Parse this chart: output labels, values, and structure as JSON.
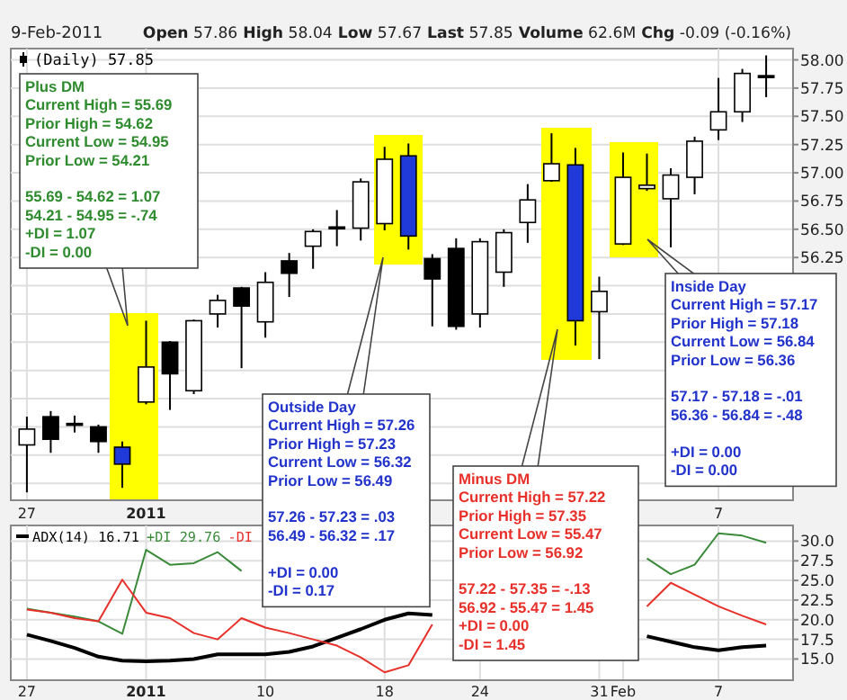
{
  "chart_data": [
    {
      "type": "candlestick",
      "title": "9-Feb-2011",
      "subtitle": "Open 57.86 High 58.04 Low 57.67 Last 57.85 Volume 62.6M Chg -0.09 (-0.16%)",
      "categories": [
        "27",
        null,
        null,
        null,
        null,
        "2011",
        null,
        null,
        null,
        null,
        null,
        null,
        null,
        null,
        null,
        null,
        null,
        null,
        null,
        null,
        null,
        null,
        null,
        null,
        null,
        null,
        null,
        null,
        null,
        "7",
        null,
        null
      ],
      "series": [
        {
          "name": "(Daily) 57.85",
          "ohlc": [
            [
              54.59,
              54.84,
              54.17,
              54.73
            ],
            [
              54.84,
              54.89,
              54.52,
              54.64
            ],
            [
              54.78,
              54.85,
              54.7,
              54.77
            ],
            [
              54.75,
              54.77,
              54.52,
              54.62
            ],
            [
              54.57,
              54.62,
              54.21,
              54.42
            ],
            [
              54.97,
              55.69,
              54.95,
              55.28
            ],
            [
              55.5,
              55.51,
              54.9,
              55.22
            ],
            [
              55.07,
              55.7,
              55.04,
              55.69
            ],
            [
              55.75,
              55.92,
              55.63,
              55.87
            ],
            [
              55.98,
              55.99,
              55.27,
              55.82
            ],
            [
              55.68,
              56.12,
              55.54,
              56.03
            ],
            [
              56.22,
              56.29,
              55.9,
              56.11
            ],
            [
              56.35,
              56.5,
              56.15,
              56.48
            ],
            [
              56.52,
              56.67,
              56.35,
              56.51
            ],
            [
              56.51,
              56.95,
              56.4,
              56.92
            ],
            [
              56.55,
              57.23,
              56.49,
              57.12
            ],
            [
              57.15,
              57.26,
              56.32,
              56.44
            ],
            [
              56.24,
              56.28,
              55.64,
              56.06
            ],
            [
              56.33,
              56.42,
              55.61,
              55.64
            ],
            [
              55.75,
              56.42,
              55.63,
              56.39
            ],
            [
              56.12,
              56.5,
              55.99,
              56.47
            ],
            [
              56.56,
              56.9,
              56.38,
              56.76
            ],
            [
              56.93,
              57.35,
              56.92,
              57.08
            ],
            [
              57.07,
              57.22,
              55.47,
              55.69
            ],
            [
              55.77,
              56.08,
              55.35,
              55.95
            ],
            [
              56.37,
              57.18,
              56.36,
              56.96
            ],
            [
              56.86,
              57.17,
              56.84,
              56.89
            ],
            [
              56.77,
              57.04,
              56.34,
              56.98
            ],
            [
              56.96,
              57.32,
              56.81,
              57.28
            ],
            [
              57.38,
              57.84,
              57.29,
              57.54
            ],
            [
              57.54,
              57.92,
              57.45,
              57.88
            ],
            [
              57.86,
              58.04,
              57.67,
              57.85
            ]
          ],
          "colors": [
            "#ffffff",
            "#000000",
            "#000000",
            "#000000",
            "#1f3ad8",
            "#ffffff",
            "#000000",
            "#ffffff",
            "#ffffff",
            "#000000",
            "#ffffff",
            "#000000",
            "#ffffff",
            "#000000",
            "#ffffff",
            "#ffffff",
            "#1f3ad8",
            "#000000",
            "#000000",
            "#ffffff",
            "#ffffff",
            "#ffffff",
            "#ffffff",
            "#1f3ad8",
            "#ffffff",
            "#ffffff",
            "#ffffff",
            "#ffffff",
            "#ffffff",
            "#ffffff",
            "#ffffff",
            "#000000"
          ]
        }
      ],
      "ylim": [
        54.1,
        58.1
      ],
      "yticks": [
        {
          "value": 54.25,
          "label": null
        },
        {
          "value": 54.5,
          "label": null
        },
        {
          "value": 54.75,
          "label": null
        },
        {
          "value": 55,
          "label": null
        },
        {
          "value": 55.25,
          "label": null
        },
        {
          "value": 55.5,
          "label": null
        },
        {
          "value": 55.75,
          "label": null
        },
        {
          "value": 56,
          "label": null
        },
        {
          "value": 56.25,
          "label": "56.25"
        },
        {
          "value": 56.5,
          "label": "56.50"
        },
        {
          "value": 56.75,
          "label": "56.75"
        },
        {
          "value": 57,
          "label": "57.00"
        },
        {
          "value": 57.25,
          "label": "57.25"
        },
        {
          "value": 57.5,
          "label": "57.50"
        },
        {
          "value": 57.75,
          "label": "57.75"
        },
        {
          "value": 58,
          "label": "58.00"
        }
      ],
      "grid": true,
      "legend": "top left",
      "annotations": [
        "Plus DM\nCurrent High = 55.69\nPrior High = 54.62\nCurrent Low = 54.95\nPrior Low = 54.21\n\n55.69 - 54.62 = 1.07\n54.21 - 54.95 = -.74\n+DI = 1.07\n-DI = 0.00",
        "Outside Day\nCurrent High = 57.26\nPrior High = 57.23\nCurrent Low = 56.32\nPrior Low = 56.49\n\n57.26 - 57.23 = .03\n56.49 - 56.32 = .17\n\n+DI = 0.00\n-DI = 0.17",
        "Minus DM\nCurrent High = 57.22\nPrior High = 57.35\nCurrent Low = 55.47\nPrior Low = 56.92\n\n57.22 - 57.35 = -.13\n56.92 - 55.47 = 1.45\n+DI = 0.00\n-DI = 1.45",
        "Inside Day\nCurrent High = 57.17\nPrior High = 57.18\nCurrent Low = 56.84\nPrior Low = 56.36\n\n57.17 - 57.18 = -.01\n56.36 - 56.84 = -.48\n\n+DI = 0.00\n-DI = 0.00"
      ]
    },
    {
      "type": "line",
      "categories": [
        "27",
        null,
        null,
        null,
        null,
        "2011",
        null,
        null,
        null,
        null,
        "10",
        null,
        null,
        null,
        null,
        "18",
        null,
        null,
        null,
        "24",
        null,
        null,
        null,
        null,
        "31",
        "Feb",
        null,
        null,
        null,
        "7",
        null,
        null
      ],
      "series": [
        {
          "name": "ADX(14) 16.71",
          "color": "#000000",
          "values": [
            18.1,
            17.3,
            16.4,
            15.3,
            14.8,
            14.7,
            14.8,
            15.0,
            15.6,
            15.6,
            15.6,
            15.9,
            16.6,
            17.7,
            18.8,
            20.0,
            20.8,
            20.6,
            null,
            null,
            null,
            null,
            null,
            null,
            null,
            null,
            17.9,
            17.2,
            16.5,
            16.1,
            16.5,
            16.7
          ]
        },
        {
          "name": "+DI 29.76",
          "color": "#3a8a3a",
          "values": [
            21.4,
            20.9,
            20.4,
            19.8,
            18.2,
            28.9,
            27.0,
            27.2,
            28.6,
            26.2,
            null,
            null,
            null,
            null,
            null,
            null,
            null,
            null,
            null,
            null,
            null,
            null,
            null,
            null,
            null,
            null,
            27.8,
            25.8,
            27.0,
            31.0,
            30.7,
            29.8
          ]
        },
        {
          "name": "-DI",
          "color": "#e8302a",
          "values": [
            21.3,
            20.9,
            20.2,
            19.8,
            25.1,
            20.9,
            20.2,
            18.3,
            17.5,
            20.2,
            19.0,
            18.3,
            17.5,
            16.7,
            15.2,
            13.3,
            14.2,
            19.4,
            null,
            null,
            null,
            null,
            null,
            null,
            null,
            null,
            21.7,
            24.7,
            23.2,
            21.7,
            20.5,
            19.4
          ]
        }
      ],
      "ylim": [
        12.3,
        32
      ],
      "yticks": [
        {
          "value": 15,
          "label": "15.0"
        },
        {
          "value": 17.5,
          "label": "17.5"
        },
        {
          "value": 20,
          "label": "20.0"
        },
        {
          "value": 22.5,
          "label": "22.5"
        },
        {
          "value": 25,
          "label": "25.0"
        },
        {
          "value": 27.5,
          "label": "27.5"
        },
        {
          "value": 30,
          "label": "30.0"
        }
      ],
      "grid": true,
      "legend": "top left"
    }
  ]
}
